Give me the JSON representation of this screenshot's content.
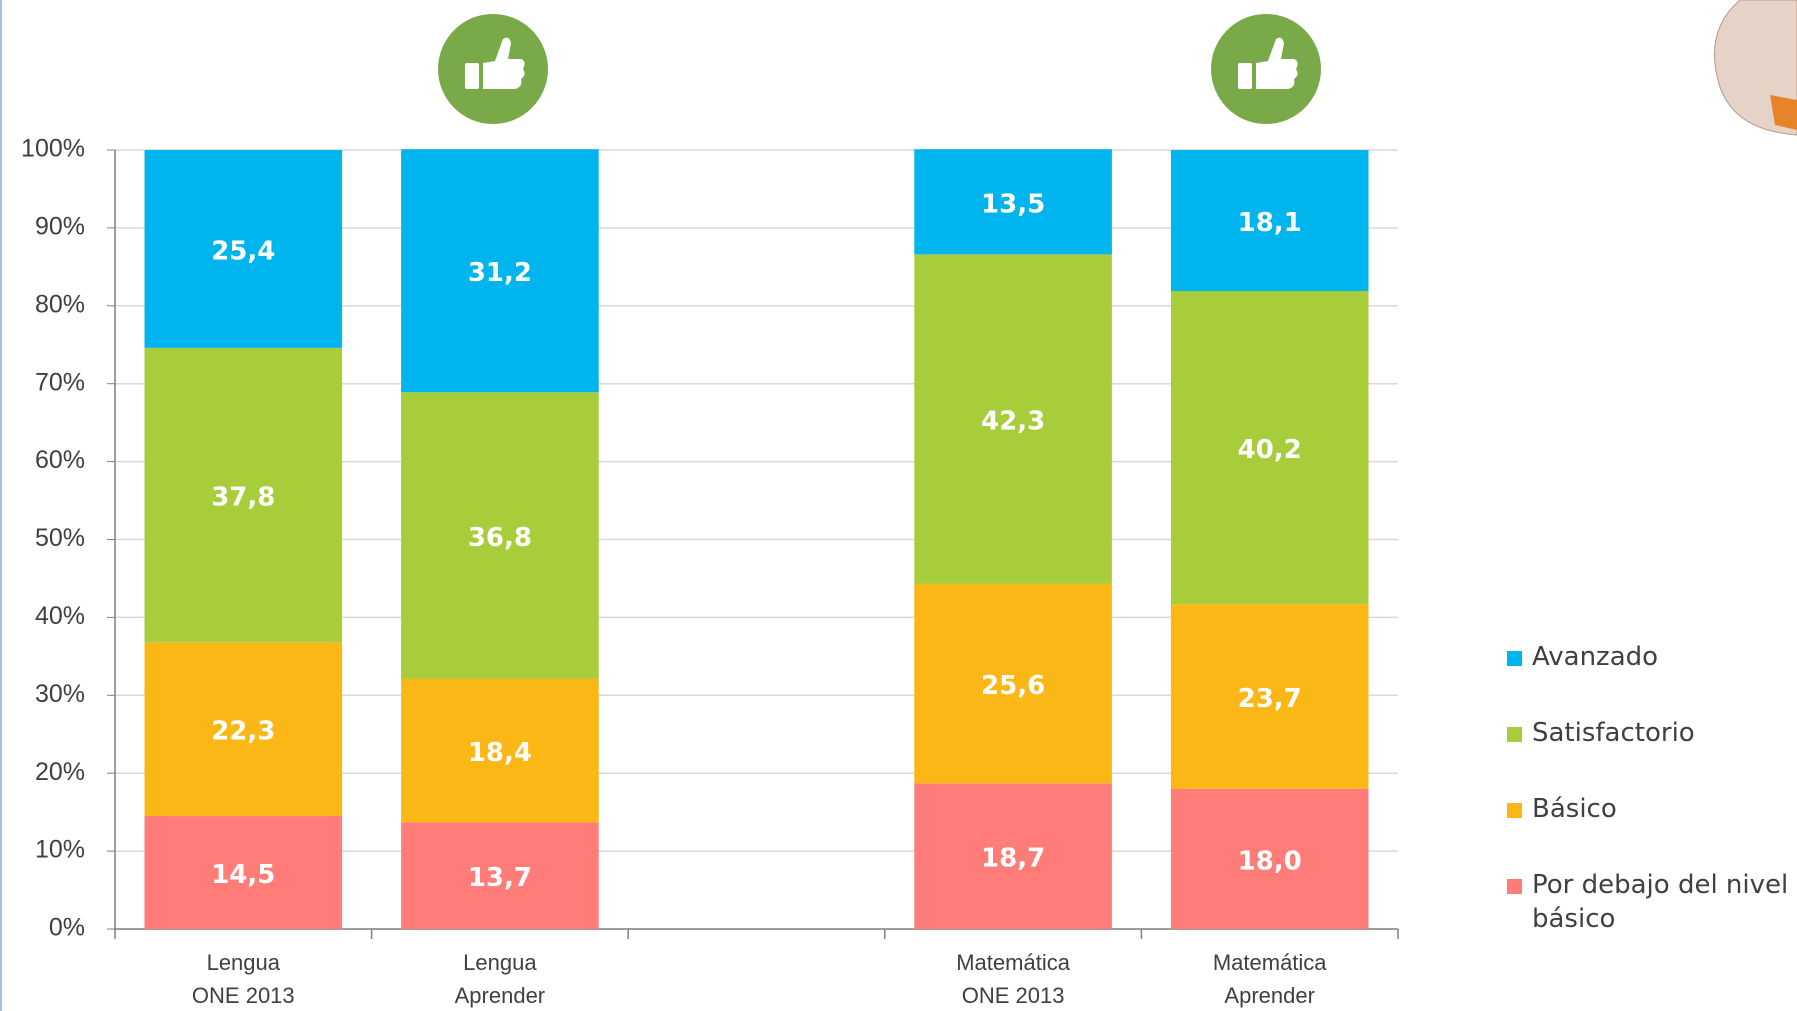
{
  "chart_data": {
    "type": "stacked_bar",
    "categories": [
      "Lengua\nONE 2013",
      "Lengua\nAprender",
      null,
      "Matemática\nONE 2013",
      "Matemática\nAprender"
    ],
    "series": [
      {
        "name": "Por debajo del nivel básico",
        "color": "#ff7c78",
        "values": [
          14.5,
          13.7,
          null,
          18.7,
          18.0
        ],
        "value_labels": [
          "14,5",
          "13,7",
          null,
          "18,7",
          "18,0"
        ]
      },
      {
        "name": "Básico",
        "color": "#fbb716",
        "values": [
          22.3,
          18.4,
          null,
          25.6,
          23.7
        ],
        "value_labels": [
          "22,3",
          "18,4",
          null,
          "25,6",
          "23,7"
        ]
      },
      {
        "name": "Satisfactorio",
        "color": "#a8cd3a",
        "values": [
          37.8,
          36.8,
          null,
          42.3,
          40.2
        ],
        "value_labels": [
          "37,8",
          "36,8",
          null,
          "42,3",
          "40,2"
        ]
      },
      {
        "name": "Avanzado",
        "color": "#00b5ed",
        "values": [
          25.4,
          31.2,
          null,
          13.5,
          18.1
        ],
        "value_labels": [
          "25,4",
          "31,2",
          null,
          "13,5",
          "18,1"
        ]
      }
    ],
    "ylim": [
      0,
      100
    ],
    "yticks": [
      {
        "value": 0,
        "label": "0%"
      },
      {
        "value": 10,
        "label": "10%"
      },
      {
        "value": 20,
        "label": "20%"
      },
      {
        "value": 30,
        "label": "30%"
      },
      {
        "value": 40,
        "label": "40%"
      },
      {
        "value": 50,
        "label": "50%"
      },
      {
        "value": 60,
        "label": "60%"
      },
      {
        "value": 70,
        "label": "70%"
      },
      {
        "value": 80,
        "label": "80%"
      },
      {
        "value": 90,
        "label": "90%"
      },
      {
        "value": 100,
        "label": "100%"
      }
    ],
    "grid": true,
    "legend": "right"
  }
}
